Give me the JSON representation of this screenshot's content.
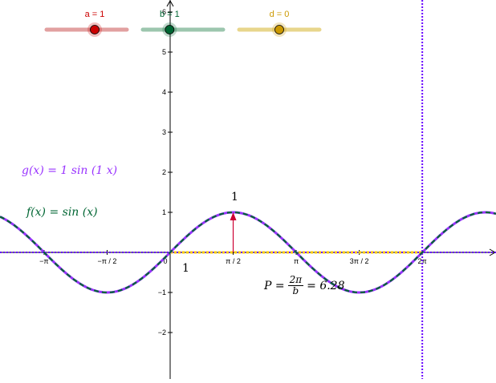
{
  "sliders": [
    {
      "name": "a",
      "label": "a = 1",
      "value": 1,
      "min": -5,
      "max": 5,
      "color": "#cc0000",
      "track_color": "#e2a0a0"
    },
    {
      "name": "b",
      "label": "b = 1",
      "value": 1,
      "min": 0,
      "max": 3,
      "color": "#006633",
      "track_color": "#9cc6ae"
    },
    {
      "name": "d",
      "label": "d = 0",
      "value": 0,
      "min": -5,
      "max": 5,
      "color": "#cc9900",
      "track_color": "#e8d68c"
    }
  ],
  "formulas": {
    "g": "g(x)  =  1  sin (1  x)",
    "f": "f(x)  =  sin (x)",
    "g_color": "#9933ff",
    "f_color": "#006633"
  },
  "period": {
    "lhs": "P =",
    "num": "2π",
    "den": "b",
    "rhs": "= 6.28"
  },
  "annotations": {
    "amplitude_label": "1",
    "one_label": "1",
    "amplitude_arrow_color": "#cc0033"
  },
  "chart_data": {
    "type": "line",
    "x_tick_labels": [
      "−π",
      "−π / 2",
      "0",
      "π / 2",
      "π",
      "3π / 2",
      "2π"
    ],
    "x_tick_values": [
      -3.14159,
      -1.5708,
      0,
      1.5708,
      3.14159,
      4.71239,
      6.28319
    ],
    "y_tick_labels": [
      "−2",
      "−1",
      "1",
      "2",
      "3",
      "4",
      "5",
      "6"
    ],
    "y_tick_values": [
      -2,
      -1,
      1,
      2,
      3,
      4,
      5,
      6
    ],
    "xlim": [
      -4.65,
      8.85
    ],
    "ylim": [
      -3.05,
      6.35
    ],
    "grid": false,
    "series": [
      {
        "name": "f",
        "expression": "sin(x)",
        "color": "#006633",
        "style": "dashed"
      },
      {
        "name": "g",
        "expression": "1 sin(1 x)",
        "color": "#9933ff",
        "style": "solid"
      }
    ],
    "period_segment": {
      "from": 0,
      "to": 6.28319,
      "y": 0,
      "color": "#ffcc00"
    },
    "vertical_line_x": 6.28319,
    "vertical_line_color": "#6600ff",
    "horizontal_line_y": 0,
    "horizontal_line_color": "#6600ff"
  }
}
